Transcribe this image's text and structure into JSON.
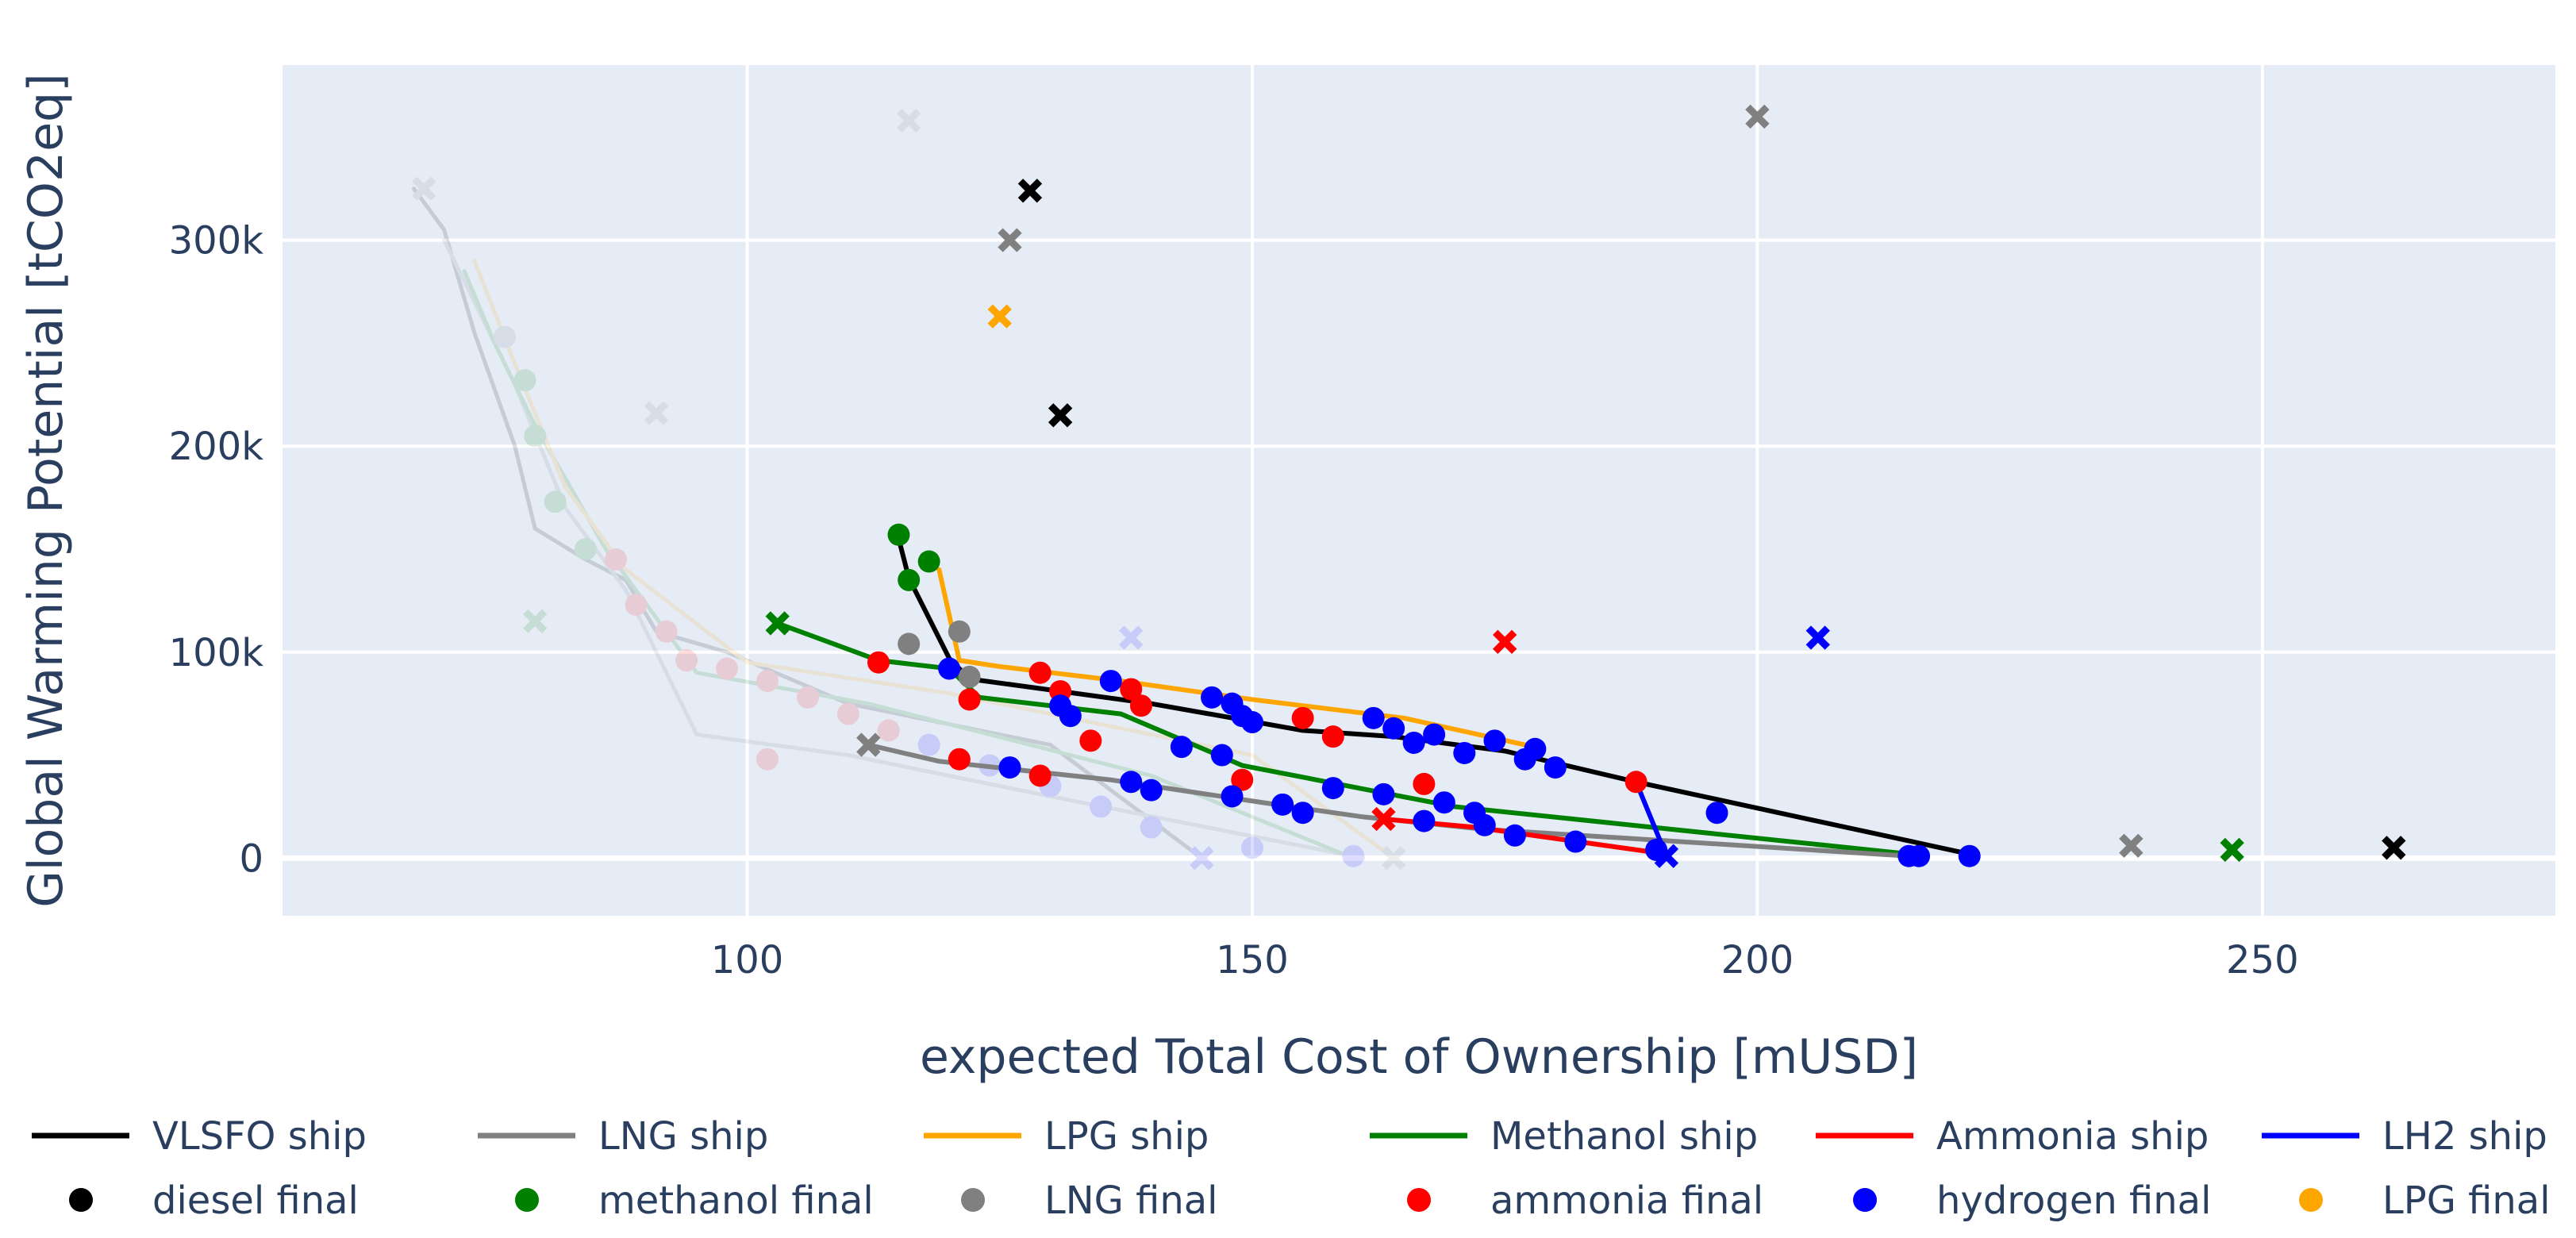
{
  "chart_data": {
    "type": "scatter",
    "xlabel": "expected Total Cost of Ownership [mUSD]",
    "ylabel": "Global Warming Potential [tCO2eq]",
    "xlim": [
      54,
      279
    ],
    "ylim": [
      -28000,
      385000
    ],
    "x_ticks": [
      {
        "value": 100,
        "label": "100"
      },
      {
        "value": 150,
        "label": "150"
      },
      {
        "value": 200,
        "label": "200"
      },
      {
        "value": 250,
        "label": "250"
      }
    ],
    "y_ticks": [
      {
        "value": 0,
        "label": "0"
      },
      {
        "value": 100000,
        "label": "100k"
      },
      {
        "value": 200000,
        "label": "200k"
      },
      {
        "value": 300000,
        "label": "300k"
      }
    ],
    "colors": {
      "plot_bg": "#e5ecf6",
      "grid": "#ffffff",
      "tick_text": "#2a3f5f",
      "vlsfo": "#000000",
      "lng": "#808080",
      "lpg": "#ffa500",
      "methanol": "#008000",
      "ammonia": "#ff0000",
      "lh2": "#0000ff"
    },
    "legend": [
      {
        "kind": "line",
        "label": "VLSFO ship",
        "color": "#000000"
      },
      {
        "kind": "line",
        "label": "LNG ship",
        "color": "#808080"
      },
      {
        "kind": "line",
        "label": "LPG ship",
        "color": "#ffa500"
      },
      {
        "kind": "line",
        "label": "Methanol ship",
        "color": "#008000"
      },
      {
        "kind": "line",
        "label": "Ammonia ship",
        "color": "#ff0000"
      },
      {
        "kind": "line",
        "label": "LH2 ship",
        "color": "#0000ff"
      },
      {
        "kind": "marker",
        "label": "diesel final",
        "color": "#000000"
      },
      {
        "kind": "marker",
        "label": "methanol final",
        "color": "#008000"
      },
      {
        "kind": "marker",
        "label": "LNG final",
        "color": "#808080"
      },
      {
        "kind": "marker",
        "label": "ammonia final",
        "color": "#ff0000"
      },
      {
        "kind": "marker",
        "label": "hydrogen final",
        "color": "#0000ff"
      },
      {
        "kind": "marker",
        "label": "LPG final",
        "color": "#ffa500"
      }
    ],
    "faded_series": [
      {
        "name": "VLSFO ship (faded)",
        "color": "#000000",
        "x": [
          67,
          70,
          73,
          77,
          79,
          84,
          88,
          91,
          98,
          110,
          130,
          145
        ],
        "y": [
          325000,
          305000,
          255000,
          200000,
          160000,
          145000,
          135000,
          110000,
          100000,
          75000,
          55000,
          0
        ]
      },
      {
        "name": "LNG ship (faded)",
        "color": "#808080",
        "x": [
          70,
          73,
          77,
          82,
          88,
          95,
          110,
          130,
          161
        ],
        "y": [
          300000,
          270000,
          230000,
          170000,
          130000,
          60000,
          50000,
          30000,
          0
        ]
      },
      {
        "name": "Methanol ship (faded)",
        "color": "#008000",
        "x": [
          72,
          75,
          79,
          86,
          95,
          112,
          140,
          160
        ],
        "y": [
          285000,
          250000,
          210000,
          150000,
          90000,
          75000,
          40000,
          0
        ]
      },
      {
        "name": "LPG ship (faded)",
        "color": "#ffa500",
        "x": [
          73,
          77,
          82,
          88,
          100,
          120,
          150,
          164
        ],
        "y": [
          290000,
          240000,
          180000,
          140000,
          95000,
          80000,
          50000,
          0
        ]
      }
    ],
    "faded_points": [
      {
        "x": 68,
        "y": 325000,
        "marker": "x",
        "color": "#808080"
      },
      {
        "x": 116,
        "y": 358000,
        "marker": "x",
        "color": "#808080"
      },
      {
        "x": 91,
        "y": 216000,
        "marker": "x",
        "color": "#808080"
      },
      {
        "x": 79,
        "y": 115000,
        "marker": "x",
        "color": "#008000"
      },
      {
        "x": 138,
        "y": 107000,
        "marker": "x",
        "color": "#0000ff"
      },
      {
        "x": 76,
        "y": 253000,
        "marker": "circle",
        "color": "#808080"
      },
      {
        "x": 78,
        "y": 232000,
        "marker": "circle",
        "color": "#008000"
      },
      {
        "x": 79,
        "y": 205000,
        "marker": "circle",
        "color": "#008000"
      },
      {
        "x": 81,
        "y": 173000,
        "marker": "circle",
        "color": "#008000"
      },
      {
        "x": 84,
        "y": 150000,
        "marker": "circle",
        "color": "#008000"
      },
      {
        "x": 87,
        "y": 145000,
        "marker": "circle",
        "color": "#ff0000"
      },
      {
        "x": 89,
        "y": 123000,
        "marker": "circle",
        "color": "#ff0000"
      },
      {
        "x": 92,
        "y": 110000,
        "marker": "circle",
        "color": "#ff0000"
      },
      {
        "x": 94,
        "y": 96000,
        "marker": "circle",
        "color": "#ff0000"
      },
      {
        "x": 98,
        "y": 92000,
        "marker": "circle",
        "color": "#ff0000"
      },
      {
        "x": 102,
        "y": 86000,
        "marker": "circle",
        "color": "#ff0000"
      },
      {
        "x": 106,
        "y": 78000,
        "marker": "circle",
        "color": "#ff0000"
      },
      {
        "x": 110,
        "y": 70000,
        "marker": "circle",
        "color": "#ff0000"
      },
      {
        "x": 114,
        "y": 62000,
        "marker": "circle",
        "color": "#ff0000"
      },
      {
        "x": 102,
        "y": 48000,
        "marker": "circle",
        "color": "#ff0000"
      },
      {
        "x": 118,
        "y": 55000,
        "marker": "circle",
        "color": "#0000ff"
      },
      {
        "x": 124,
        "y": 45000,
        "marker": "circle",
        "color": "#0000ff"
      },
      {
        "x": 130,
        "y": 35000,
        "marker": "circle",
        "color": "#0000ff"
      },
      {
        "x": 135,
        "y": 25000,
        "marker": "circle",
        "color": "#0000ff"
      },
      {
        "x": 140,
        "y": 15000,
        "marker": "circle",
        "color": "#0000ff"
      },
      {
        "x": 150,
        "y": 5000,
        "marker": "circle",
        "color": "#0000ff"
      },
      {
        "x": 160,
        "y": 1000,
        "marker": "circle",
        "color": "#0000ff"
      },
      {
        "x": 145,
        "y": 0,
        "marker": "x",
        "color": "#0000ff"
      },
      {
        "x": 164,
        "y": 0,
        "marker": "x",
        "color": "#808080"
      }
    ],
    "series": [
      {
        "name": "VLSFO ship",
        "color": "#000000",
        "x": [
          115,
          116,
          120,
          122,
          128,
          140,
          155,
          164,
          175,
          188,
          221
        ],
        "y": [
          155000,
          136000,
          97000,
          87000,
          83000,
          75000,
          62000,
          59000,
          52000,
          37000,
          2000
        ]
      },
      {
        "name": "LPG ship",
        "color": "#ffa500",
        "x": [
          119,
          121,
          125,
          137,
          150,
          165,
          177
        ],
        "y": [
          140000,
          96000,
          93000,
          86000,
          77000,
          68000,
          55000
        ]
      },
      {
        "name": "Methanol ship",
        "color": "#008000",
        "x": [
          103,
          113,
          120,
          123,
          137,
          149,
          170,
          215
        ],
        "y": [
          114000,
          96000,
          92000,
          78000,
          70000,
          45000,
          25000,
          2000
        ]
      },
      {
        "name": "LNG ship",
        "color": "#808080",
        "x": [
          112,
          119,
          136,
          151,
          161,
          173,
          215
        ],
        "y": [
          55000,
          47000,
          38000,
          27000,
          20000,
          14000,
          1000
        ]
      },
      {
        "name": "Ammonia ship",
        "color": "#ff0000",
        "x": [
          163,
          172,
          191
        ],
        "y": [
          19000,
          15000,
          2000
        ]
      },
      {
        "name": "LH2 ship",
        "color": "#0000ff",
        "x": [
          188,
          191
        ],
        "y": [
          37000,
          1000
        ]
      }
    ],
    "points": [
      {
        "x": 128,
        "y": 324000,
        "marker": "x",
        "color": "#000000"
      },
      {
        "x": 131,
        "y": 215000,
        "marker": "x",
        "color": "#000000"
      },
      {
        "x": 263,
        "y": 5000,
        "marker": "x",
        "color": "#000000"
      },
      {
        "x": 126,
        "y": 300000,
        "marker": "x",
        "color": "#808080"
      },
      {
        "x": 200,
        "y": 360000,
        "marker": "x",
        "color": "#808080"
      },
      {
        "x": 237,
        "y": 6000,
        "marker": "x",
        "color": "#808080"
      },
      {
        "x": 112,
        "y": 55000,
        "marker": "x",
        "color": "#808080"
      },
      {
        "x": 125,
        "y": 263000,
        "marker": "x",
        "color": "#ffa500"
      },
      {
        "x": 103,
        "y": 114000,
        "marker": "x",
        "color": "#008000"
      },
      {
        "x": 247,
        "y": 4000,
        "marker": "x",
        "color": "#008000"
      },
      {
        "x": 175,
        "y": 105000,
        "marker": "x",
        "color": "#ff0000"
      },
      {
        "x": 163,
        "y": 19000,
        "marker": "x",
        "color": "#ff0000"
      },
      {
        "x": 206,
        "y": 107000,
        "marker": "x",
        "color": "#0000ff"
      },
      {
        "x": 191,
        "y": 1000,
        "marker": "x",
        "color": "#0000ff"
      },
      {
        "x": 115,
        "y": 157000,
        "marker": "circle",
        "color": "#008000"
      },
      {
        "x": 118,
        "y": 144000,
        "marker": "circle",
        "color": "#008000"
      },
      {
        "x": 116,
        "y": 135000,
        "marker": "circle",
        "color": "#008000"
      },
      {
        "x": 116,
        "y": 104000,
        "marker": "circle",
        "color": "#808080"
      },
      {
        "x": 121,
        "y": 110000,
        "marker": "circle",
        "color": "#808080"
      },
      {
        "x": 122,
        "y": 88000,
        "marker": "circle",
        "color": "#808080"
      },
      {
        "x": 113,
        "y": 95000,
        "marker": "circle",
        "color": "#ff0000"
      },
      {
        "x": 122,
        "y": 77000,
        "marker": "circle",
        "color": "#ff0000"
      },
      {
        "x": 129,
        "y": 90000,
        "marker": "circle",
        "color": "#ff0000"
      },
      {
        "x": 131,
        "y": 81000,
        "marker": "circle",
        "color": "#ff0000"
      },
      {
        "x": 138,
        "y": 82000,
        "marker": "circle",
        "color": "#ff0000"
      },
      {
        "x": 139,
        "y": 74000,
        "marker": "circle",
        "color": "#ff0000"
      },
      {
        "x": 155,
        "y": 68000,
        "marker": "circle",
        "color": "#ff0000"
      },
      {
        "x": 158,
        "y": 59000,
        "marker": "circle",
        "color": "#ff0000"
      },
      {
        "x": 134,
        "y": 57000,
        "marker": "circle",
        "color": "#ff0000"
      },
      {
        "x": 121,
        "y": 48000,
        "marker": "circle",
        "color": "#ff0000"
      },
      {
        "x": 129,
        "y": 40000,
        "marker": "circle",
        "color": "#ff0000"
      },
      {
        "x": 149,
        "y": 38000,
        "marker": "circle",
        "color": "#ff0000"
      },
      {
        "x": 167,
        "y": 36000,
        "marker": "circle",
        "color": "#ff0000"
      },
      {
        "x": 188,
        "y": 37000,
        "marker": "circle",
        "color": "#ff0000"
      },
      {
        "x": 120,
        "y": 92000,
        "marker": "circle",
        "color": "#0000ff"
      },
      {
        "x": 136,
        "y": 86000,
        "marker": "circle",
        "color": "#0000ff"
      },
      {
        "x": 131,
        "y": 74000,
        "marker": "circle",
        "color": "#0000ff"
      },
      {
        "x": 132,
        "y": 69000,
        "marker": "circle",
        "color": "#0000ff"
      },
      {
        "x": 146,
        "y": 78000,
        "marker": "circle",
        "color": "#0000ff"
      },
      {
        "x": 148,
        "y": 75000,
        "marker": "circle",
        "color": "#0000ff"
      },
      {
        "x": 149,
        "y": 69000,
        "marker": "circle",
        "color": "#0000ff"
      },
      {
        "x": 150,
        "y": 66000,
        "marker": "circle",
        "color": "#0000ff"
      },
      {
        "x": 143,
        "y": 54000,
        "marker": "circle",
        "color": "#0000ff"
      },
      {
        "x": 147,
        "y": 50000,
        "marker": "circle",
        "color": "#0000ff"
      },
      {
        "x": 162,
        "y": 68000,
        "marker": "circle",
        "color": "#0000ff"
      },
      {
        "x": 164,
        "y": 63000,
        "marker": "circle",
        "color": "#0000ff"
      },
      {
        "x": 166,
        "y": 56000,
        "marker": "circle",
        "color": "#0000ff"
      },
      {
        "x": 168,
        "y": 60000,
        "marker": "circle",
        "color": "#0000ff"
      },
      {
        "x": 171,
        "y": 51000,
        "marker": "circle",
        "color": "#0000ff"
      },
      {
        "x": 174,
        "y": 57000,
        "marker": "circle",
        "color": "#0000ff"
      },
      {
        "x": 177,
        "y": 48000,
        "marker": "circle",
        "color": "#0000ff"
      },
      {
        "x": 178,
        "y": 53000,
        "marker": "circle",
        "color": "#0000ff"
      },
      {
        "x": 180,
        "y": 44000,
        "marker": "circle",
        "color": "#0000ff"
      },
      {
        "x": 126,
        "y": 44000,
        "marker": "circle",
        "color": "#0000ff"
      },
      {
        "x": 138,
        "y": 37000,
        "marker": "circle",
        "color": "#0000ff"
      },
      {
        "x": 140,
        "y": 33000,
        "marker": "circle",
        "color": "#0000ff"
      },
      {
        "x": 148,
        "y": 30000,
        "marker": "circle",
        "color": "#0000ff"
      },
      {
        "x": 153,
        "y": 26000,
        "marker": "circle",
        "color": "#0000ff"
      },
      {
        "x": 155,
        "y": 22000,
        "marker": "circle",
        "color": "#0000ff"
      },
      {
        "x": 158,
        "y": 34000,
        "marker": "circle",
        "color": "#0000ff"
      },
      {
        "x": 163,
        "y": 31000,
        "marker": "circle",
        "color": "#0000ff"
      },
      {
        "x": 167,
        "y": 18000,
        "marker": "circle",
        "color": "#0000ff"
      },
      {
        "x": 169,
        "y": 27000,
        "marker": "circle",
        "color": "#0000ff"
      },
      {
        "x": 172,
        "y": 22000,
        "marker": "circle",
        "color": "#0000ff"
      },
      {
        "x": 173,
        "y": 16000,
        "marker": "circle",
        "color": "#0000ff"
      },
      {
        "x": 176,
        "y": 11000,
        "marker": "circle",
        "color": "#0000ff"
      },
      {
        "x": 182,
        "y": 8000,
        "marker": "circle",
        "color": "#0000ff"
      },
      {
        "x": 190,
        "y": 4000,
        "marker": "circle",
        "color": "#0000ff"
      },
      {
        "x": 196,
        "y": 22000,
        "marker": "circle",
        "color": "#0000ff"
      },
      {
        "x": 215,
        "y": 1000,
        "marker": "circle",
        "color": "#0000ff"
      },
      {
        "x": 216,
        "y": 1000,
        "marker": "circle",
        "color": "#0000ff"
      },
      {
        "x": 221,
        "y": 1000,
        "marker": "circle",
        "color": "#0000ff"
      }
    ]
  }
}
